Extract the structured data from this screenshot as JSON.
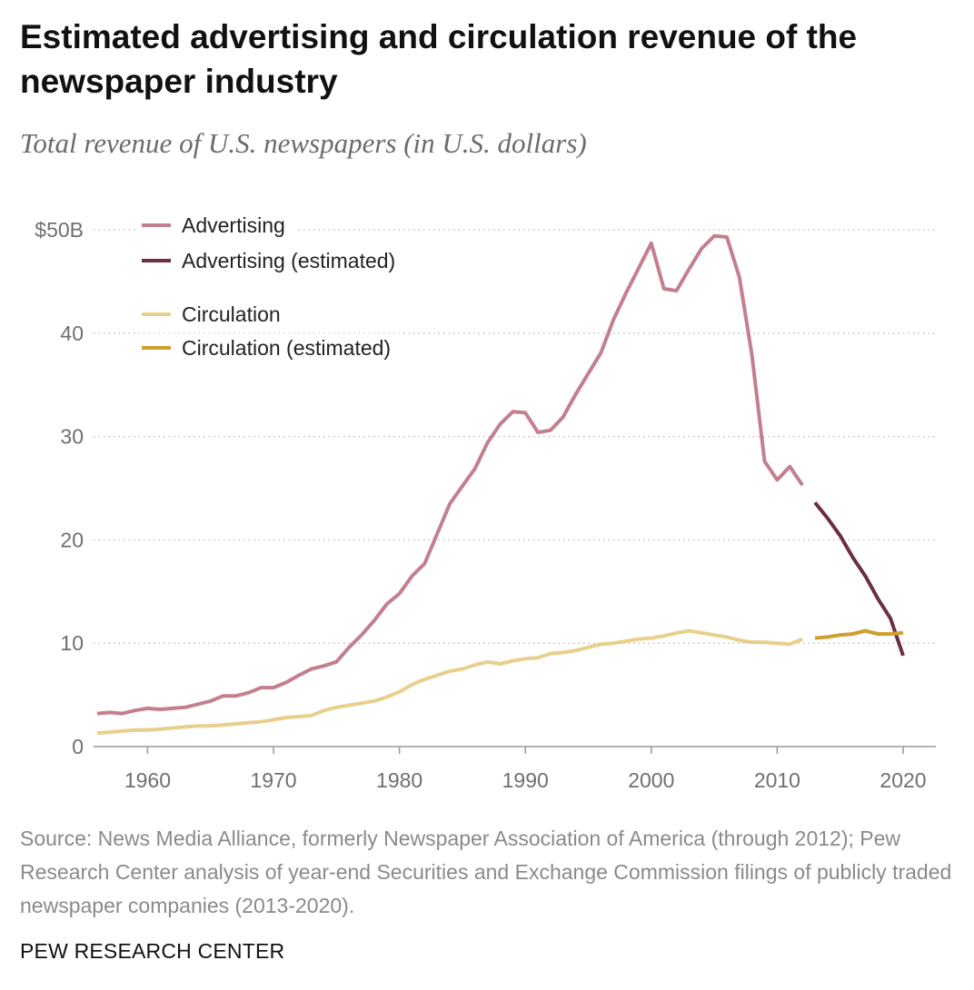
{
  "title": "Estimated advertising and circulation revenue of the newspaper industry",
  "subtitle": "Total revenue of U.S. newspapers (in U.S. dollars)",
  "source": "Source: News Media Alliance, formerly Newspaper Association of America (through 2012); Pew Research Center analysis of year-end Securities and Exchange Commission filings of publicly traded newspaper companies (2013-2020).",
  "credit": "PEW RESEARCH CENTER",
  "colors": {
    "advertising": "#c47f8f",
    "advertising_estimated": "#6b2f40",
    "circulation": "#e8cf8c",
    "circulation_estimated": "#cf9f2f",
    "grid": "#b8b8b8",
    "axis": "#999999",
    "tick_text": "#6f6f6f"
  },
  "chart_data": {
    "type": "line",
    "title": "Estimated advertising and circulation revenue of the newspaper industry",
    "subtitle": "Total revenue of U.S. newspapers (in U.S. dollars)",
    "xlim": [
      1956,
      2020
    ],
    "ylim": [
      0,
      50
    ],
    "x_ticks": [
      1960,
      1970,
      1980,
      1990,
      2000,
      2010,
      2020
    ],
    "x_tick_labels": [
      "1960",
      "1970",
      "1980",
      "1990",
      "2000",
      "2010",
      "2020"
    ],
    "y_ticks": [
      0,
      10,
      20,
      30,
      40,
      50
    ],
    "y_tick_labels": [
      "0",
      "10",
      "20",
      "30",
      "40",
      "$50B"
    ],
    "grid": "horizontal dotted",
    "legend_position": "top-left",
    "series": [
      {
        "name": "Advertising",
        "color": "#c47f8f",
        "x": [
          1956,
          1957,
          1958,
          1959,
          1960,
          1961,
          1962,
          1963,
          1964,
          1965,
          1966,
          1967,
          1968,
          1969,
          1970,
          1971,
          1972,
          1973,
          1974,
          1975,
          1976,
          1977,
          1978,
          1979,
          1980,
          1981,
          1982,
          1983,
          1984,
          1985,
          1986,
          1987,
          1988,
          1989,
          1990,
          1991,
          1992,
          1993,
          1994,
          1995,
          1996,
          1997,
          1998,
          1999,
          2000,
          2001,
          2002,
          2003,
          2004,
          2005,
          2006,
          2007,
          2008,
          2009,
          2010,
          2011,
          2012
        ],
        "y": [
          3.2,
          3.3,
          3.2,
          3.5,
          3.7,
          3.6,
          3.7,
          3.8,
          4.1,
          4.4,
          4.9,
          4.9,
          5.2,
          5.7,
          5.7,
          6.2,
          6.9,
          7.5,
          7.8,
          8.2,
          9.6,
          10.8,
          12.2,
          13.8,
          14.8,
          16.5,
          17.7,
          20.6,
          23.5,
          25.2,
          26.9,
          29.4,
          31.2,
          32.4,
          32.3,
          30.4,
          30.6,
          31.9,
          34.1,
          36.1,
          38.1,
          41.3,
          43.9,
          46.3,
          48.7,
          44.3,
          44.1,
          46.2,
          48.2,
          49.4,
          49.3,
          45.4,
          37.8,
          27.6,
          25.8,
          27.1,
          25.3
        ]
      },
      {
        "name": "Advertising (estimated)",
        "color": "#6b2f40",
        "x": [
          2013,
          2014,
          2015,
          2016,
          2017,
          2018,
          2019,
          2020
        ],
        "y": [
          23.6,
          22.1,
          20.4,
          18.3,
          16.5,
          14.3,
          12.4,
          8.8
        ]
      },
      {
        "name": "Circulation",
        "color": "#e8cf8c",
        "x": [
          1956,
          1957,
          1958,
          1959,
          1960,
          1961,
          1962,
          1963,
          1964,
          1965,
          1966,
          1967,
          1968,
          1969,
          1970,
          1971,
          1972,
          1973,
          1974,
          1975,
          1976,
          1977,
          1978,
          1979,
          1980,
          1981,
          1982,
          1983,
          1984,
          1985,
          1986,
          1987,
          1988,
          1989,
          1990,
          1991,
          1992,
          1993,
          1994,
          1995,
          1996,
          1997,
          1998,
          1999,
          2000,
          2001,
          2002,
          2003,
          2004,
          2005,
          2006,
          2007,
          2008,
          2009,
          2010,
          2011,
          2012
        ],
        "y": [
          1.3,
          1.4,
          1.5,
          1.6,
          1.6,
          1.7,
          1.8,
          1.9,
          2.0,
          2.0,
          2.1,
          2.2,
          2.3,
          2.4,
          2.6,
          2.8,
          2.9,
          3.0,
          3.5,
          3.8,
          4.0,
          4.2,
          4.4,
          4.8,
          5.3,
          6.0,
          6.5,
          6.9,
          7.3,
          7.5,
          7.9,
          8.2,
          8.0,
          8.3,
          8.5,
          8.6,
          9.0,
          9.1,
          9.3,
          9.6,
          9.9,
          10.0,
          10.2,
          10.4,
          10.5,
          10.7,
          11.0,
          11.2,
          11.0,
          10.8,
          10.6,
          10.3,
          10.1,
          10.1,
          10.0,
          9.9,
          10.4
        ]
      },
      {
        "name": "Circulation (estimated)",
        "color": "#cf9f2f",
        "x": [
          2013,
          2014,
          2015,
          2016,
          2017,
          2018,
          2019,
          2020
        ],
        "y": [
          10.5,
          10.6,
          10.8,
          10.9,
          11.2,
          10.9,
          10.9,
          11.0
        ]
      }
    ]
  }
}
